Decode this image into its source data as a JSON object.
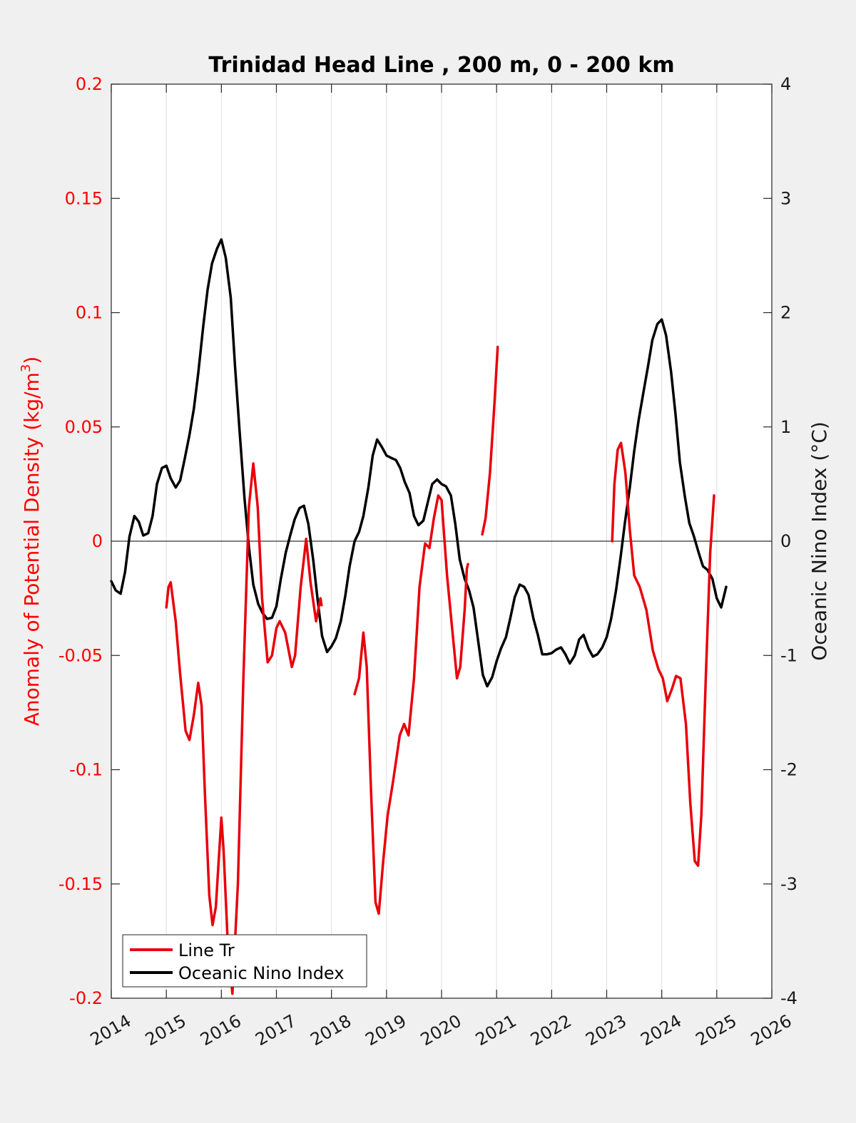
{
  "chart_data": {
    "type": "line",
    "title": "Trinidad Head Line , 200 m, 0 - 200 km",
    "ylabel_left": "Anomaly of Potential Density (kg/m",
    "ylabel_left_sup": "3",
    "ylabel_left_end": ")",
    "ylabel_right": "Oceanic Nino Index (°C)",
    "xlim": [
      2014,
      2026
    ],
    "ylim_left": [
      -0.2,
      0.2
    ],
    "ylim_right": [
      -4,
      4
    ],
    "x_ticks": [
      "2014",
      "2015",
      "2016",
      "2017",
      "2018",
      "2019",
      "2020",
      "2021",
      "2022",
      "2023",
      "2024",
      "2025",
      "2026"
    ],
    "y_left_ticks": [
      "0.2",
      "0.15",
      "0.1",
      "0.05",
      "0",
      "-0.05",
      "-0.1",
      "-0.15",
      "-0.2"
    ],
    "y_right_ticks": [
      "4",
      "3",
      "2",
      "1",
      "0",
      "-1",
      "-2",
      "-3",
      "-4"
    ],
    "grid": "vertical only",
    "zero_line": true,
    "legend_position": "bottom-left",
    "colors": {
      "line": "#e8000b",
      "oni": "#000000",
      "left_axis": "#ff0000",
      "plot_bg": "#ffffff",
      "page_bg": "#f0f0f0"
    },
    "series": [
      {
        "name": "Line Tr",
        "axis": "left",
        "color": "#e8000b",
        "segments": [
          [
            [
              2015.0,
              -0.029
            ],
            [
              2015.04,
              -0.02
            ],
            [
              2015.08,
              -0.018
            ],
            [
              2015.17,
              -0.035
            ],
            [
              2015.25,
              -0.058
            ],
            [
              2015.35,
              -0.083
            ],
            [
              2015.42,
              -0.087
            ],
            [
              2015.5,
              -0.076
            ],
            [
              2015.58,
              -0.062
            ],
            [
              2015.64,
              -0.072
            ],
            [
              2015.7,
              -0.11
            ],
            [
              2015.78,
              -0.155
            ],
            [
              2015.84,
              -0.168
            ],
            [
              2015.9,
              -0.16
            ],
            [
              2016.0,
              -0.121
            ],
            [
              2016.04,
              -0.135
            ],
            [
              2016.12,
              -0.178
            ],
            [
              2016.2,
              -0.198
            ],
            [
              2016.3,
              -0.15
            ],
            [
              2016.4,
              -0.06
            ],
            [
              2016.5,
              0.015
            ],
            [
              2016.58,
              0.034
            ],
            [
              2016.66,
              0.015
            ],
            [
              2016.74,
              -0.025
            ],
            [
              2016.84,
              -0.053
            ],
            [
              2016.92,
              -0.05
            ],
            [
              2017.0,
              -0.038
            ],
            [
              2017.06,
              -0.035
            ],
            [
              2017.16,
              -0.04
            ],
            [
              2017.28,
              -0.055
            ],
            [
              2017.34,
              -0.05
            ],
            [
              2017.44,
              -0.02
            ],
            [
              2017.54,
              0.001
            ],
            [
              2017.62,
              -0.018
            ],
            [
              2017.72,
              -0.035
            ],
            [
              2017.8,
              -0.025
            ],
            [
              2017.82,
              -0.028
            ]
          ],
          [
            [
              2018.42,
              -0.067
            ],
            [
              2018.5,
              -0.06
            ],
            [
              2018.58,
              -0.04
            ],
            [
              2018.64,
              -0.055
            ],
            [
              2018.72,
              -0.11
            ],
            [
              2018.8,
              -0.158
            ],
            [
              2018.86,
              -0.163
            ],
            [
              2018.94,
              -0.14
            ],
            [
              2019.02,
              -0.12
            ],
            [
              2019.12,
              -0.105
            ],
            [
              2019.24,
              -0.085
            ],
            [
              2019.32,
              -0.08
            ],
            [
              2019.4,
              -0.085
            ],
            [
              2019.5,
              -0.06
            ],
            [
              2019.6,
              -0.02
            ],
            [
              2019.7,
              -0.001
            ],
            [
              2019.78,
              -0.003
            ],
            [
              2019.86,
              0.01
            ],
            [
              2019.94,
              0.02
            ],
            [
              2020.0,
              0.018
            ],
            [
              2020.1,
              -0.015
            ],
            [
              2020.2,
              -0.04
            ],
            [
              2020.28,
              -0.06
            ],
            [
              2020.34,
              -0.055
            ],
            [
              2020.42,
              -0.03
            ],
            [
              2020.46,
              -0.012
            ],
            [
              2020.48,
              -0.01
            ]
          ],
          [
            [
              2020.74,
              0.003
            ],
            [
              2020.8,
              0.01
            ],
            [
              2020.88,
              0.03
            ],
            [
              2020.96,
              0.06
            ],
            [
              2021.02,
              0.085
            ]
          ],
          [
            [
              2023.1,
              0.0
            ],
            [
              2023.14,
              0.025
            ],
            [
              2023.2,
              0.04
            ],
            [
              2023.26,
              0.043
            ],
            [
              2023.34,
              0.03
            ],
            [
              2023.42,
              0.005
            ],
            [
              2023.5,
              -0.015
            ],
            [
              2023.6,
              -0.02
            ],
            [
              2023.72,
              -0.03
            ],
            [
              2023.84,
              -0.048
            ],
            [
              2023.94,
              -0.056
            ],
            [
              2024.02,
              -0.06
            ],
            [
              2024.1,
              -0.07
            ],
            [
              2024.18,
              -0.065
            ],
            [
              2024.26,
              -0.059
            ],
            [
              2024.34,
              -0.06
            ],
            [
              2024.44,
              -0.08
            ],
            [
              2024.52,
              -0.115
            ],
            [
              2024.6,
              -0.14
            ],
            [
              2024.66,
              -0.142
            ],
            [
              2024.72,
              -0.12
            ],
            [
              2024.8,
              -0.06
            ],
            [
              2024.88,
              -0.005
            ],
            [
              2024.95,
              0.02
            ]
          ]
        ]
      },
      {
        "name": "Oceanic Nino Index",
        "axis": "right",
        "color": "#000000",
        "segments": [
          [
            [
              2014.0,
              -0.35
            ],
            [
              2014.08,
              -0.43
            ],
            [
              2014.17,
              -0.46
            ],
            [
              2014.25,
              -0.27
            ],
            [
              2014.33,
              0.04
            ],
            [
              2014.42,
              0.22
            ],
            [
              2014.5,
              0.17
            ],
            [
              2014.58,
              0.05
            ],
            [
              2014.67,
              0.07
            ],
            [
              2014.75,
              0.22
            ],
            [
              2014.83,
              0.5
            ],
            [
              2014.92,
              0.64
            ],
            [
              2015.0,
              0.66
            ],
            [
              2015.08,
              0.55
            ],
            [
              2015.17,
              0.47
            ],
            [
              2015.25,
              0.53
            ],
            [
              2015.33,
              0.71
            ],
            [
              2015.42,
              0.93
            ],
            [
              2015.5,
              1.16
            ],
            [
              2015.58,
              1.47
            ],
            [
              2015.67,
              1.88
            ],
            [
              2015.75,
              2.2
            ],
            [
              2015.83,
              2.43
            ],
            [
              2015.92,
              2.56
            ],
            [
              2016.0,
              2.64
            ],
            [
              2016.08,
              2.48
            ],
            [
              2016.17,
              2.13
            ],
            [
              2016.25,
              1.52
            ],
            [
              2016.33,
              0.97
            ],
            [
              2016.42,
              0.38
            ],
            [
              2016.5,
              -0.05
            ],
            [
              2016.58,
              -0.38
            ],
            [
              2016.67,
              -0.55
            ],
            [
              2016.75,
              -0.63
            ],
            [
              2016.83,
              -0.68
            ],
            [
              2016.92,
              -0.67
            ],
            [
              2017.0,
              -0.57
            ],
            [
              2017.08,
              -0.33
            ],
            [
              2017.17,
              -0.1
            ],
            [
              2017.25,
              0.05
            ],
            [
              2017.33,
              0.19
            ],
            [
              2017.42,
              0.29
            ],
            [
              2017.5,
              0.31
            ],
            [
              2017.58,
              0.15
            ],
            [
              2017.67,
              -0.17
            ],
            [
              2017.75,
              -0.52
            ],
            [
              2017.83,
              -0.83
            ],
            [
              2017.92,
              -0.97
            ],
            [
              2018.0,
              -0.92
            ],
            [
              2018.08,
              -0.85
            ],
            [
              2018.17,
              -0.7
            ],
            [
              2018.25,
              -0.48
            ],
            [
              2018.33,
              -0.22
            ],
            [
              2018.42,
              0.0
            ],
            [
              2018.5,
              0.08
            ],
            [
              2018.58,
              0.22
            ],
            [
              2018.67,
              0.47
            ],
            [
              2018.75,
              0.75
            ],
            [
              2018.83,
              0.89
            ],
            [
              2018.92,
              0.82
            ],
            [
              2019.0,
              0.75
            ],
            [
              2019.08,
              0.73
            ],
            [
              2019.17,
              0.71
            ],
            [
              2019.25,
              0.64
            ],
            [
              2019.33,
              0.52
            ],
            [
              2019.42,
              0.42
            ],
            [
              2019.5,
              0.22
            ],
            [
              2019.58,
              0.14
            ],
            [
              2019.67,
              0.18
            ],
            [
              2019.75,
              0.34
            ],
            [
              2019.83,
              0.5
            ],
            [
              2019.92,
              0.54
            ],
            [
              2020.0,
              0.5
            ],
            [
              2020.08,
              0.48
            ],
            [
              2020.17,
              0.4
            ],
            [
              2020.25,
              0.15
            ],
            [
              2020.33,
              -0.16
            ],
            [
              2020.42,
              -0.33
            ],
            [
              2020.5,
              -0.43
            ],
            [
              2020.58,
              -0.58
            ],
            [
              2020.67,
              -0.89
            ],
            [
              2020.75,
              -1.17
            ],
            [
              2020.83,
              -1.27
            ],
            [
              2020.92,
              -1.19
            ],
            [
              2021.0,
              -1.05
            ],
            [
              2021.08,
              -0.94
            ],
            [
              2021.17,
              -0.84
            ],
            [
              2021.25,
              -0.67
            ],
            [
              2021.33,
              -0.49
            ],
            [
              2021.42,
              -0.38
            ],
            [
              2021.5,
              -0.4
            ],
            [
              2021.58,
              -0.47
            ],
            [
              2021.67,
              -0.68
            ],
            [
              2021.75,
              -0.82
            ],
            [
              2021.83,
              -0.99
            ],
            [
              2021.92,
              -0.99
            ],
            [
              2022.0,
              -0.98
            ],
            [
              2022.08,
              -0.95
            ],
            [
              2022.17,
              -0.93
            ],
            [
              2022.25,
              -0.99
            ],
            [
              2022.33,
              -1.07
            ],
            [
              2022.42,
              -1.0
            ],
            [
              2022.5,
              -0.86
            ],
            [
              2022.58,
              -0.82
            ],
            [
              2022.67,
              -0.94
            ],
            [
              2022.75,
              -1.01
            ],
            [
              2022.83,
              -0.99
            ],
            [
              2022.92,
              -0.93
            ],
            [
              2023.0,
              -0.84
            ],
            [
              2023.08,
              -0.68
            ],
            [
              2023.17,
              -0.43
            ],
            [
              2023.25,
              -0.15
            ],
            [
              2023.33,
              0.16
            ],
            [
              2023.42,
              0.47
            ],
            [
              2023.5,
              0.79
            ],
            [
              2023.58,
              1.06
            ],
            [
              2023.67,
              1.31
            ],
            [
              2023.75,
              1.53
            ],
            [
              2023.83,
              1.76
            ],
            [
              2023.92,
              1.9
            ],
            [
              2024.0,
              1.94
            ],
            [
              2024.08,
              1.8
            ],
            [
              2024.17,
              1.48
            ],
            [
              2024.25,
              1.11
            ],
            [
              2024.33,
              0.69
            ],
            [
              2024.42,
              0.39
            ],
            [
              2024.5,
              0.16
            ],
            [
              2024.58,
              0.05
            ],
            [
              2024.67,
              -0.1
            ],
            [
              2024.75,
              -0.22
            ],
            [
              2024.83,
              -0.25
            ],
            [
              2024.92,
              -0.33
            ],
            [
              2025.0,
              -0.5
            ],
            [
              2025.08,
              -0.58
            ],
            [
              2025.17,
              -0.4
            ]
          ]
        ]
      }
    ]
  }
}
